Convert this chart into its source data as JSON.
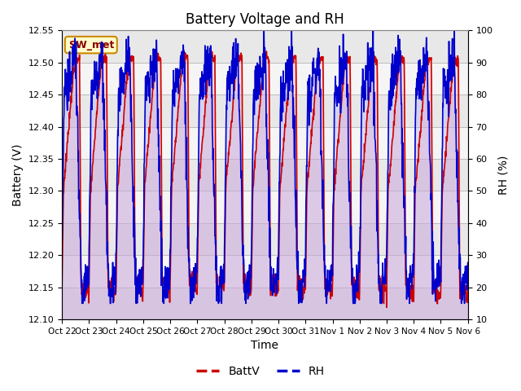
{
  "title": "Battery Voltage and RH",
  "xlabel": "Time",
  "ylabel_left": "Battery (V)",
  "ylabel_right": "RH (%)",
  "ylim_left": [
    12.1,
    12.55
  ],
  "ylim_right": [
    10,
    100
  ],
  "yticks_left": [
    12.1,
    12.15,
    12.2,
    12.25,
    12.3,
    12.35,
    12.4,
    12.45,
    12.5,
    12.55
  ],
  "yticks_right": [
    10,
    20,
    30,
    40,
    50,
    60,
    70,
    80,
    90,
    100
  ],
  "xtick_labels": [
    "Oct 22",
    "Oct 23",
    "Oct 24",
    "Oct 25",
    "Oct 26",
    "Oct 27",
    "Oct 28",
    "Oct 29",
    "Oct 30",
    "Oct 31",
    "Nov 1",
    "Nov 2",
    "Nov 3",
    "Nov 4",
    "Nov 5",
    "Nov 6"
  ],
  "annotation_text": "SW_met",
  "annotation_bg": "#ffffcc",
  "annotation_edge": "#cc8800",
  "batt_color": "#cc0000",
  "rh_color": "#0000cc",
  "batt_fill": "#ffaaaa",
  "rh_fill": "#aaaaff",
  "background_color": "#ffffff",
  "band_colors": [
    "#e8e8e8",
    "#f5f5f5"
  ],
  "legend_entries": [
    "BattV",
    "RH"
  ],
  "num_days": 15,
  "pts_per_day": 96
}
